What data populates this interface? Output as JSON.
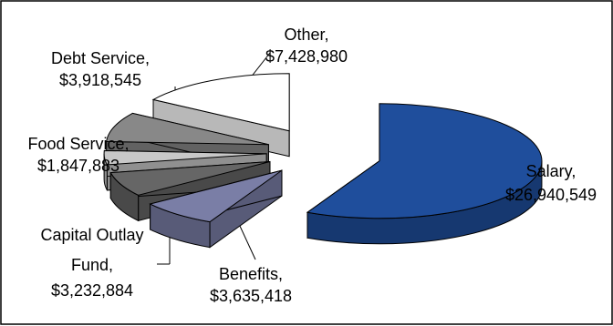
{
  "chart_data": {
    "type": "pie",
    "style": "3d-exploded",
    "title": "",
    "legend": "none",
    "slices": [
      {
        "label": "Salary,",
        "value_label": "$26,940,549",
        "value": 26940549,
        "color": "#1F4E9C"
      },
      {
        "label": "Benefits,",
        "value_label": "$3,635,418",
        "value": 3635418,
        "color": "#7A7EA6"
      },
      {
        "label": "Capital Outlay Fund,",
        "value_label": "$3,232,884",
        "value": 3232884,
        "color": "#666666"
      },
      {
        "label": "Food Service,",
        "value_label": "$1,847,883",
        "value": 1847883,
        "color": "#C8C8C8"
      },
      {
        "label": "Debt Service,",
        "value_label": "$3,918,545",
        "value": 3918545,
        "color": "#888888"
      },
      {
        "label": "Other,",
        "value_label": "$7,428,980",
        "value": 7428980,
        "color": "#FFFFFF"
      }
    ]
  }
}
